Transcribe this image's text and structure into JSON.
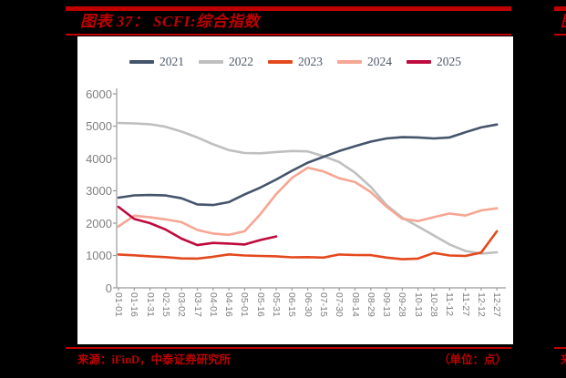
{
  "page": {
    "background": "#000000",
    "accent_red": "#C00000",
    "panel_bg": "#FFFFFF"
  },
  "figure": {
    "title": "图表 37： SCFI:综合指数",
    "source": "来源：iFinD，中泰证券研究所",
    "unit_note": "（单位：点）"
  },
  "next_panel_sliver": {
    "title_fragment": "图",
    "source_fragment": "来"
  },
  "chart_data": {
    "type": "line",
    "title": "SCFI:综合指数",
    "unit": "点",
    "grid": false,
    "legend_position": "top",
    "ylim": [
      0,
      6000
    ],
    "yticks": [
      0,
      1000,
      2000,
      3000,
      4000,
      5000,
      6000
    ],
    "categories": [
      "01-01",
      "01-16",
      "01-31",
      "02-15",
      "03-02",
      "03-17",
      "04-01",
      "04-16",
      "05-01",
      "05-16",
      "05-31",
      "06-15",
      "06-30",
      "07-15",
      "07-30",
      "08-14",
      "08-29",
      "09-13",
      "09-28",
      "10-13",
      "10-28",
      "11-12",
      "11-27",
      "12-12",
      "12-27"
    ],
    "series": [
      {
        "name": "2021",
        "color": "#44546A",
        "values": [
          2790,
          2860,
          2870,
          2855,
          2770,
          2580,
          2560,
          2650,
          2890,
          3100,
          3350,
          3620,
          3870,
          4050,
          4230,
          4380,
          4520,
          4620,
          4660,
          4650,
          4620,
          4650,
          4810,
          4960,
          5050
        ]
      },
      {
        "name": "2022",
        "color": "#BFBFBF",
        "values": [
          5100,
          5085,
          5060,
          4980,
          4830,
          4650,
          4440,
          4260,
          4170,
          4160,
          4200,
          4230,
          4220,
          4070,
          3890,
          3560,
          3120,
          2560,
          2170,
          1900,
          1620,
          1340,
          1140,
          1060,
          1100
        ]
      },
      {
        "name": "2023",
        "color": "#E4491E",
        "values": [
          1030,
          1005,
          975,
          950,
          910,
          905,
          960,
          1035,
          1000,
          985,
          975,
          945,
          950,
          935,
          1030,
          1015,
          1010,
          935,
          885,
          905,
          1080,
          1000,
          985,
          1090,
          1750
        ]
      },
      {
        "name": "2024",
        "color": "#F6A693",
        "values": [
          1900,
          2230,
          2180,
          2115,
          2030,
          1790,
          1680,
          1640,
          1750,
          2280,
          2900,
          3400,
          3715,
          3600,
          3390,
          3270,
          2960,
          2510,
          2135,
          2065,
          2185,
          2300,
          2235,
          2395,
          2460
        ]
      },
      {
        "name": "2025",
        "color": "#BE0A3C",
        "values": [
          2505,
          2130,
          2000,
          1800,
          1520,
          1320,
          1390,
          1370,
          1340,
          1480,
          1590
        ]
      }
    ],
    "draw_order": [
      1,
      3,
      2,
      0,
      4
    ],
    "axis_color": "#9A9A9A"
  }
}
